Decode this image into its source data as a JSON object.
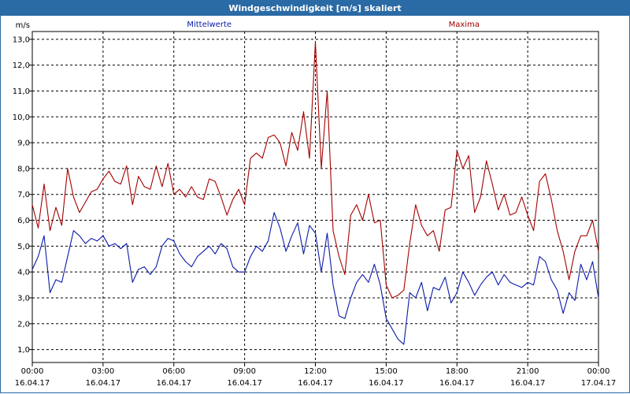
{
  "window": {
    "title": "Windgeschwindigkeit [m/s] skaliert"
  },
  "colors": {
    "titlebar": "#2a6aa5",
    "mean": "#0a1aa8",
    "max": "#a40000",
    "grid": "#000000"
  },
  "chart_data": {
    "type": "line",
    "title": "Windgeschwindigkeit [m/s] skaliert",
    "ylabel": "m/s",
    "xlabel": "",
    "ylim": [
      0.5,
      13.3
    ],
    "y_ticks": [
      "1,0",
      "2,0",
      "3,0",
      "4,0",
      "5,0",
      "6,0",
      "7,0",
      "8,0",
      "9,0",
      "10,0",
      "11,0",
      "12,0",
      "13,0"
    ],
    "x_ticks": [
      {
        "time": "00:00",
        "date": "16.04.17"
      },
      {
        "time": "03:00",
        "date": "16.04.17"
      },
      {
        "time": "06:00",
        "date": "16.04.17"
      },
      {
        "time": "09:00",
        "date": "16.04.17"
      },
      {
        "time": "12:00",
        "date": "16.04.17"
      },
      {
        "time": "15:00",
        "date": "16.04.17"
      },
      {
        "time": "18:00",
        "date": "16.04.17"
      },
      {
        "time": "21:00",
        "date": "16.04.17"
      },
      {
        "time": "00:00",
        "date": "17.04.17"
      }
    ],
    "x_hours": [
      0,
      24
    ],
    "grid": true,
    "legend": [
      "Mittelwerte",
      "Maxima"
    ],
    "series": [
      {
        "name": "Mittelwerte",
        "color": "#0a1aa8",
        "x": [
          0,
          0.25,
          0.5,
          0.75,
          1,
          1.25,
          1.5,
          1.75,
          2,
          2.25,
          2.5,
          2.75,
          3,
          3.25,
          3.5,
          3.75,
          4,
          4.25,
          4.5,
          4.75,
          5,
          5.25,
          5.5,
          5.75,
          6,
          6.25,
          6.5,
          6.75,
          7,
          7.25,
          7.5,
          7.75,
          8,
          8.25,
          8.5,
          8.75,
          9,
          9.25,
          9.5,
          9.75,
          10,
          10.25,
          10.5,
          10.75,
          11,
          11.25,
          11.5,
          11.75,
          12,
          12.25,
          12.5,
          12.75,
          13,
          13.25,
          13.5,
          13.75,
          14,
          14.25,
          14.5,
          14.75,
          15,
          15.25,
          15.5,
          15.75,
          16,
          16.25,
          16.5,
          16.75,
          17,
          17.25,
          17.5,
          17.75,
          18,
          18.25,
          18.5,
          18.75,
          19,
          19.25,
          19.5,
          19.75,
          20,
          20.25,
          20.5,
          20.75,
          21,
          21.25,
          21.5,
          21.75,
          22,
          22.25,
          22.5,
          22.75,
          23,
          23.25,
          23.5,
          23.75,
          24
        ],
        "y": [
          4.1,
          4.6,
          5.4,
          3.2,
          3.7,
          3.6,
          4.6,
          5.6,
          5.4,
          5.1,
          5.3,
          5.2,
          5.4,
          5.0,
          5.1,
          4.9,
          5.1,
          3.6,
          4.1,
          4.2,
          3.9,
          4.2,
          5.0,
          5.3,
          5.2,
          4.7,
          4.4,
          4.2,
          4.6,
          4.8,
          5.0,
          4.7,
          5.1,
          4.9,
          4.2,
          4.0,
          4.0,
          4.6,
          5.0,
          4.8,
          5.2,
          6.3,
          5.7,
          4.8,
          5.4,
          5.9,
          4.7,
          5.8,
          5.5,
          4.0,
          5.5,
          3.5,
          2.3,
          2.2,
          3.0,
          3.6,
          3.9,
          3.6,
          4.3,
          3.5,
          2.2,
          1.8,
          1.4,
          1.2,
          3.2,
          3.0,
          3.6,
          2.5,
          3.4,
          3.3,
          3.8,
          2.8,
          3.2,
          4.0,
          3.6,
          3.1,
          3.5,
          3.8,
          4.0,
          3.5,
          3.9,
          3.6,
          3.5,
          3.4,
          3.6,
          3.5,
          4.6,
          4.4,
          3.7,
          3.3,
          2.4,
          3.2,
          2.9,
          4.3,
          3.7,
          4.4,
          3.0
        ]
      },
      {
        "name": "Maxima",
        "color": "#a40000",
        "x": [
          0,
          0.25,
          0.5,
          0.75,
          1,
          1.25,
          1.5,
          1.75,
          2,
          2.25,
          2.5,
          2.75,
          3,
          3.25,
          3.5,
          3.75,
          4,
          4.25,
          4.5,
          4.75,
          5,
          5.25,
          5.5,
          5.75,
          6,
          6.25,
          6.5,
          6.75,
          7,
          7.25,
          7.5,
          7.75,
          8,
          8.25,
          8.5,
          8.75,
          9,
          9.25,
          9.5,
          9.75,
          10,
          10.25,
          10.5,
          10.75,
          11,
          11.25,
          11.5,
          11.75,
          12,
          12.25,
          12.5,
          12.75,
          13,
          13.25,
          13.5,
          13.75,
          14,
          14.25,
          14.5,
          14.75,
          15,
          15.25,
          15.5,
          15.75,
          16,
          16.25,
          16.5,
          16.75,
          17,
          17.25,
          17.5,
          17.75,
          18,
          18.25,
          18.5,
          18.75,
          19,
          19.25,
          19.5,
          19.75,
          20,
          20.25,
          20.5,
          20.75,
          21,
          21.25,
          21.5,
          21.75,
          22,
          22.25,
          22.5,
          22.75,
          23,
          23.25,
          23.5,
          23.75,
          24
        ],
        "y": [
          6.6,
          5.7,
          7.4,
          5.6,
          6.5,
          5.8,
          8.0,
          6.9,
          6.3,
          6.7,
          7.1,
          7.2,
          7.6,
          7.9,
          7.5,
          7.4,
          8.1,
          6.6,
          7.7,
          7.3,
          7.2,
          8.1,
          7.3,
          8.2,
          7.0,
          7.2,
          6.9,
          7.3,
          6.9,
          6.8,
          7.6,
          7.5,
          6.9,
          6.2,
          6.8,
          7.2,
          6.6,
          8.4,
          8.6,
          8.4,
          9.2,
          9.3,
          9.0,
          8.1,
          9.4,
          8.7,
          10.2,
          8.4,
          12.9,
          8.0,
          11.0,
          5.6,
          4.6,
          3.9,
          6.2,
          6.6,
          6.0,
          7.0,
          5.9,
          6.0,
          3.5,
          3.0,
          3.1,
          3.3,
          5.1,
          6.6,
          5.8,
          5.4,
          5.6,
          4.8,
          6.4,
          6.5,
          8.7,
          8.0,
          8.5,
          6.3,
          6.9,
          8.3,
          7.4,
          6.4,
          7.0,
          6.2,
          6.3,
          6.9,
          6.2,
          5.6,
          7.5,
          7.8,
          6.8,
          5.6,
          4.8,
          3.7,
          4.8,
          5.4,
          5.4,
          6.0,
          4.8
        ]
      }
    ]
  }
}
